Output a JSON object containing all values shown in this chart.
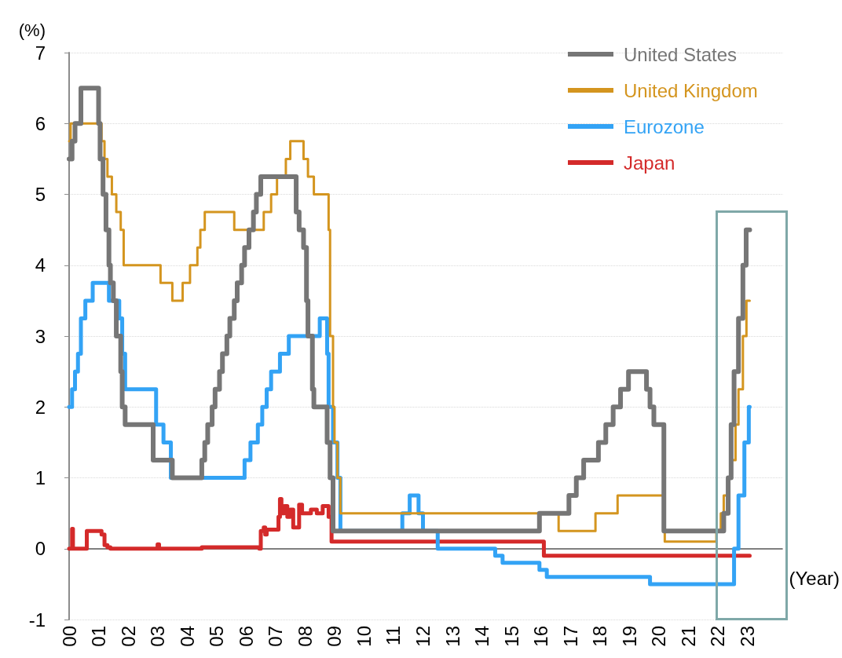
{
  "chart_data": {
    "type": "step",
    "xlabel": "(Year)",
    "ylabel": "(%)",
    "xlim": [
      2000,
      2024.2
    ],
    "xticks": [
      {
        "value": 2000,
        "label": "00"
      },
      {
        "value": 2001,
        "label": "01"
      },
      {
        "value": 2002,
        "label": "02"
      },
      {
        "value": 2003,
        "label": "03"
      },
      {
        "value": 2004,
        "label": "04"
      },
      {
        "value": 2005,
        "label": "05"
      },
      {
        "value": 2006,
        "label": "06"
      },
      {
        "value": 2007,
        "label": "07"
      },
      {
        "value": 2008,
        "label": "08"
      },
      {
        "value": 2009,
        "label": "09"
      },
      {
        "value": 2010,
        "label": "10"
      },
      {
        "value": 2011,
        "label": "11"
      },
      {
        "value": 2012,
        "label": "12"
      },
      {
        "value": 2013,
        "label": "13"
      },
      {
        "value": 2014,
        "label": "14"
      },
      {
        "value": 2015,
        "label": "15"
      },
      {
        "value": 2016,
        "label": "16"
      },
      {
        "value": 2017,
        "label": "17"
      },
      {
        "value": 2018,
        "label": "18"
      },
      {
        "value": 2019,
        "label": "19"
      },
      {
        "value": 2020,
        "label": "20"
      },
      {
        "value": 2021,
        "label": "21"
      },
      {
        "value": 2022,
        "label": "22"
      },
      {
        "value": 2023,
        "label": "23"
      }
    ],
    "ylim": [
      -1,
      7
    ],
    "yticks": [
      -1,
      0,
      1,
      2,
      3,
      4,
      5,
      6,
      7
    ],
    "grid": "y",
    "legend": "top right",
    "marker": "none",
    "line_style": "solid",
    "ref_lines": [
      {
        "axis": "y",
        "value": 0,
        "color": "#7f7f7f"
      }
    ],
    "series": [
      {
        "name": "United States",
        "color": "#767676",
        "x": [
          2000,
          2000.1,
          2000.2,
          2000.4,
          2001.0,
          2001.05,
          2001.15,
          2001.25,
          2001.35,
          2001.4,
          2001.5,
          2001.6,
          2001.75,
          2001.8,
          2001.9,
          2001.95,
          2002.85,
          2003.5,
          2004.5,
          2004.6,
          2004.7,
          2004.85,
          2004.95,
          2005.1,
          2005.2,
          2005.35,
          2005.45,
          2005.6,
          2005.7,
          2005.85,
          2005.95,
          2006.1,
          2006.25,
          2006.35,
          2006.5,
          2007.7,
          2007.8,
          2007.95,
          2008.05,
          2008.1,
          2008.25,
          2008.3,
          2008.75,
          2008.85,
          2008.95,
          2015.95,
          2016.95,
          2017.2,
          2017.45,
          2017.95,
          2018.2,
          2018.45,
          2018.7,
          2018.97,
          2019.58,
          2019.7,
          2019.83,
          2020.17,
          2022.2,
          2022.35,
          2022.45,
          2022.55,
          2022.7,
          2022.85,
          2022.96,
          2023.08
        ],
        "values": [
          5.5,
          5.75,
          6.0,
          6.5,
          6.0,
          5.5,
          5.0,
          4.5,
          4.0,
          3.75,
          3.5,
          3.0,
          2.5,
          2.0,
          1.75,
          1.75,
          1.25,
          1.0,
          1.25,
          1.5,
          1.75,
          2.0,
          2.25,
          2.5,
          2.75,
          3.0,
          3.25,
          3.5,
          3.75,
          4.0,
          4.25,
          4.5,
          4.75,
          5.0,
          5.25,
          4.75,
          4.5,
          4.25,
          3.5,
          3.0,
          2.25,
          2.0,
          1.5,
          1.0,
          0.25,
          0.5,
          0.75,
          1.0,
          1.25,
          1.5,
          1.75,
          2.0,
          2.25,
          2.5,
          2.25,
          2.0,
          1.75,
          0.25,
          0.5,
          1.0,
          1.75,
          2.5,
          3.25,
          4.0,
          4.5,
          4.5
        ]
      },
      {
        "name": "United Kingdom",
        "color": "#d4951f",
        "x": [
          2000,
          2000.05,
          2001.1,
          2001.2,
          2001.3,
          2001.45,
          2001.6,
          2001.75,
          2001.85,
          2003.1,
          2003.5,
          2003.85,
          2004.1,
          2004.35,
          2004.45,
          2004.6,
          2005.6,
          2006.6,
          2006.85,
          2007.05,
          2007.35,
          2007.5,
          2007.95,
          2008.1,
          2008.3,
          2008.8,
          2008.85,
          2008.95,
          2009.0,
          2009.1,
          2009.2,
          2016.6,
          2017.85,
          2018.6,
          2020.2,
          2021.95,
          2022.1,
          2022.2,
          2022.35,
          2022.45,
          2022.6,
          2022.7,
          2022.85,
          2022.97,
          2023.08
        ],
        "values": [
          5.75,
          6.0,
          5.75,
          5.5,
          5.25,
          5.0,
          4.75,
          4.5,
          4.0,
          3.75,
          3.5,
          3.75,
          4.0,
          4.25,
          4.5,
          4.75,
          4.5,
          4.75,
          5.0,
          5.25,
          5.5,
          5.75,
          5.5,
          5.25,
          5.0,
          4.5,
          3.0,
          2.0,
          1.5,
          1.0,
          0.5,
          0.25,
          0.5,
          0.75,
          0.1,
          0.25,
          0.5,
          0.75,
          1.0,
          1.25,
          1.75,
          2.25,
          3.0,
          3.5,
          3.5
        ]
      },
      {
        "name": "Eurozone",
        "color": "#33a3f5",
        "x": [
          2000,
          2000.1,
          2000.2,
          2000.3,
          2000.4,
          2000.55,
          2000.65,
          2000.8,
          2001.35,
          2001.7,
          2001.8,
          2001.9,
          2002.95,
          2003.2,
          2003.45,
          2005.95,
          2006.15,
          2006.4,
          2006.55,
          2006.7,
          2006.85,
          2007.15,
          2007.45,
          2008.5,
          2008.75,
          2008.8,
          2008.95,
          2009.1,
          2009.2,
          2011.3,
          2011.55,
          2011.85,
          2012.0,
          2012.5,
          2014.45,
          2014.7,
          2015.95,
          2016.2,
          2019.7,
          2022.55,
          2022.7,
          2022.9,
          2023.05,
          2023.08
        ],
        "values": [
          2.0,
          2.25,
          2.5,
          2.75,
          3.25,
          3.5,
          3.5,
          3.75,
          3.5,
          3.25,
          2.75,
          2.25,
          1.75,
          1.5,
          1.0,
          1.25,
          1.5,
          1.75,
          2.0,
          2.25,
          2.5,
          2.75,
          3.0,
          3.25,
          2.75,
          2.0,
          1.5,
          1.0,
          0.25,
          0.5,
          0.75,
          0.5,
          0.25,
          0.0,
          -0.1,
          -0.2,
          -0.3,
          -0.4,
          -0.5,
          0.0,
          0.75,
          1.5,
          2.0,
          2.0
        ]
      },
      {
        "name": "Japan",
        "color": "#d42a2a",
        "x": [
          2000,
          2000.1,
          2000.13,
          2000.6,
          2001.1,
          2001.2,
          2001.3,
          2001.4,
          2003.0,
          2003.05,
          2004.5,
          2006.45,
          2006.5,
          2006.6,
          2006.65,
          2006.7,
          2007.1,
          2007.15,
          2007.2,
          2007.3,
          2007.4,
          2007.5,
          2007.6,
          2007.8,
          2007.9,
          2008.2,
          2008.4,
          2008.6,
          2008.8,
          2008.9,
          2016.1,
          2023.08
        ],
        "values": [
          0.0,
          0.28,
          0.0,
          0.25,
          0.2,
          0.05,
          0.02,
          0.0,
          0.06,
          0.0,
          0.02,
          0.0,
          0.25,
          0.3,
          0.2,
          0.27,
          0.45,
          0.7,
          0.5,
          0.6,
          0.45,
          0.55,
          0.3,
          0.62,
          0.5,
          0.55,
          0.5,
          0.6,
          0.45,
          0.1,
          -0.1,
          -0.1
        ]
      }
    ]
  }
}
